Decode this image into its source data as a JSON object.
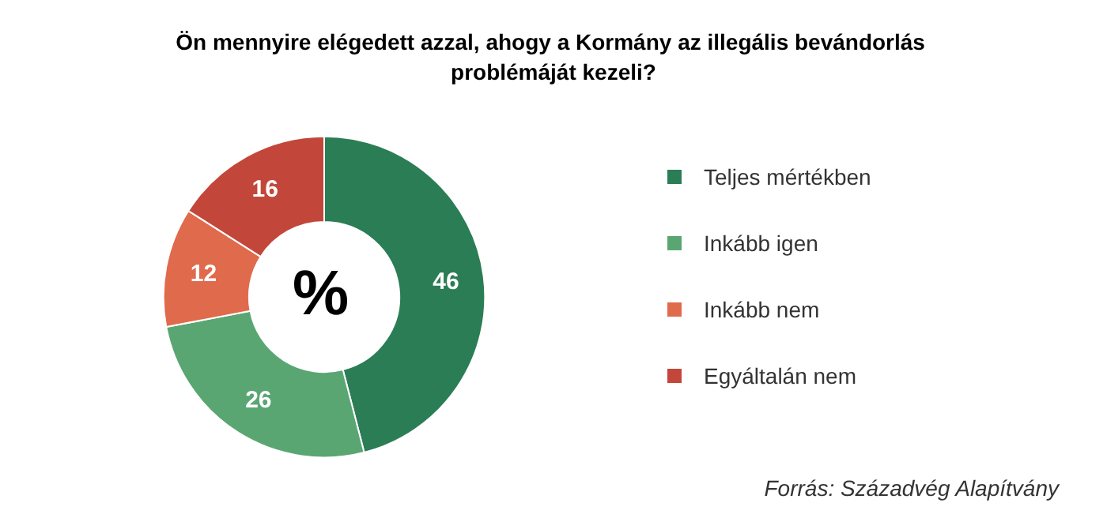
{
  "chart_data": {
    "type": "donut",
    "title": "Ön mennyire elégedett azzal, ahogy a Kormány az illegális bevándorlás problémáját kezeli?",
    "categories": [
      "Teljes mértékben",
      "Inkább igen",
      "Inkább nem",
      "Egyáltalán nem"
    ],
    "values": [
      46,
      26,
      12,
      16
    ],
    "colors": [
      "#2b7d55",
      "#5aa673",
      "#e06a4c",
      "#c2473a"
    ],
    "data_labels": true,
    "legend": "right",
    "annotations": [
      "%",
      "Forrás: Századvég Alapítvány"
    ]
  }
}
